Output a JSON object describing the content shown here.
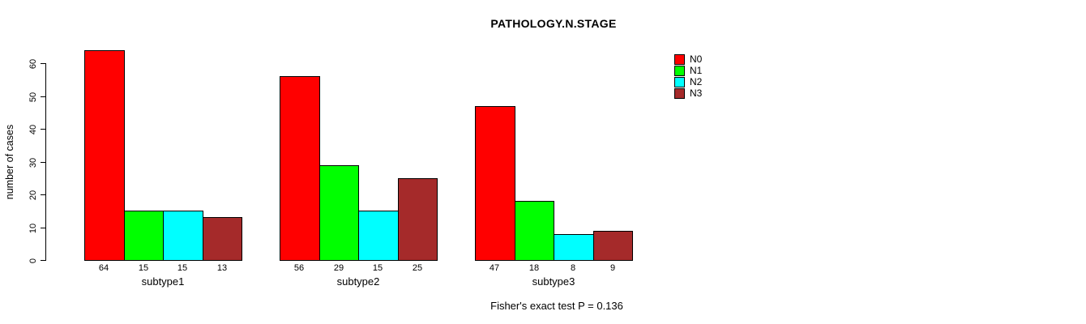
{
  "chart_data": {
    "type": "bar",
    "title": "PATHOLOGY.N.STAGE",
    "xlabel": "",
    "ylabel": "number of cases",
    "categories": [
      "subtype1",
      "subtype2",
      "subtype3"
    ],
    "series": [
      {
        "name": "N0",
        "color": "#ff0000",
        "values": [
          64,
          56,
          47
        ]
      },
      {
        "name": "N1",
        "color": "#00ff00",
        "values": [
          15,
          29,
          18
        ]
      },
      {
        "name": "N2",
        "color": "#00ffff",
        "values": [
          15,
          15,
          8
        ]
      },
      {
        "name": "N3",
        "color": "#a52a2a",
        "values": [
          13,
          25,
          9
        ]
      }
    ],
    "yticks": [
      0,
      10,
      20,
      30,
      40,
      50,
      60
    ],
    "ylim": [
      0,
      60
    ],
    "bar_value_labels": true,
    "grid": false,
    "legend_position": "right",
    "annotation": "Fisher's exact test P = 0.136"
  },
  "colors": {
    "background": "#ffffff",
    "axis": "#000000",
    "text": "#000000"
  }
}
